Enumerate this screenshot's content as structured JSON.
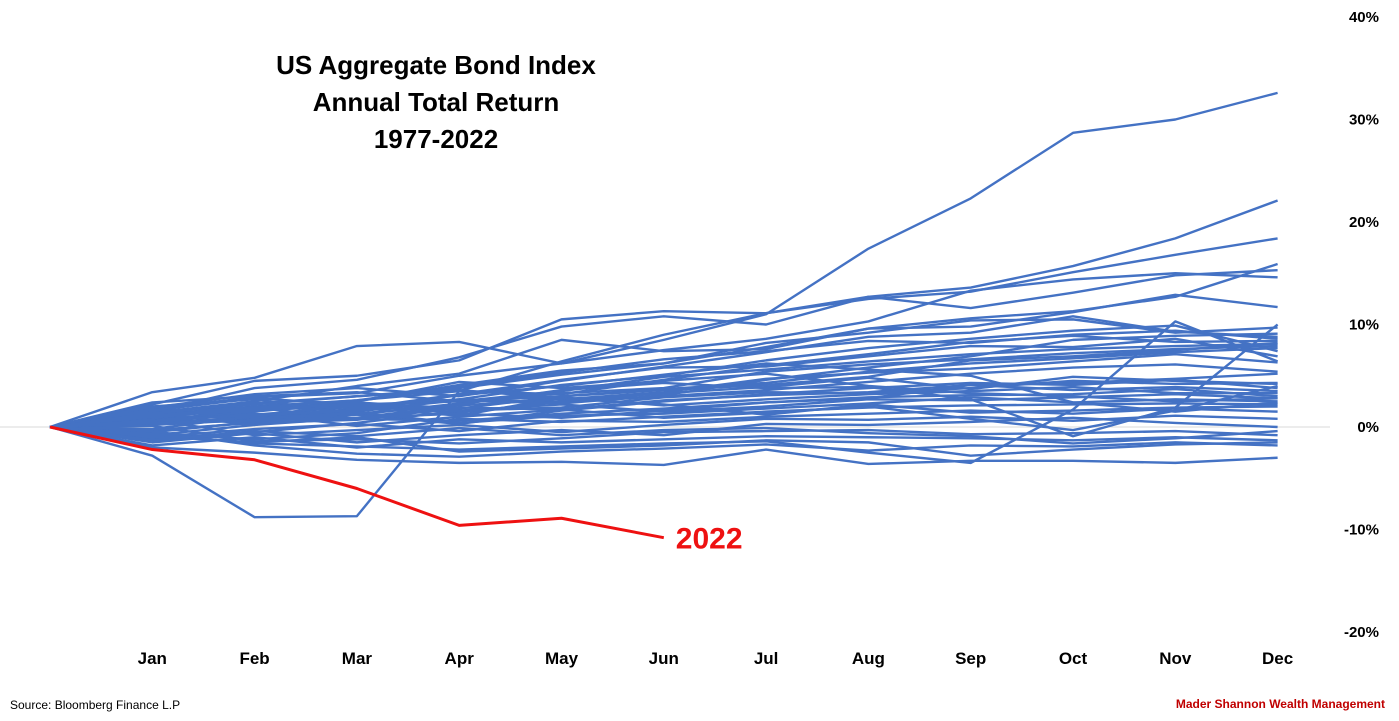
{
  "chart_data": {
    "type": "line",
    "title": [
      "US Aggregate Bond Index",
      "Annual Total Return",
      "1977-2022"
    ],
    "categories": [
      "",
      "Jan",
      "Feb",
      "Mar",
      "Apr",
      "May",
      "Jun",
      "Jul",
      "Aug",
      "Sep",
      "Oct",
      "Nov",
      "Dec"
    ],
    "ylim": [
      -20,
      40
    ],
    "yticks": [
      40,
      30,
      20,
      10,
      0,
      -10,
      -20
    ],
    "ytick_labels": [
      "40%",
      "30%",
      "20%",
      "10%",
      "0%",
      "-10%",
      "-20%"
    ],
    "grid": false,
    "colors": {
      "history": "#4472c4",
      "highlight": "#ee1111",
      "zero_line": "#d9d9d9"
    },
    "highlight": {
      "name": "2022",
      "values": [
        0,
        -2.2,
        -3.2,
        -6,
        -9.6,
        -8.9,
        -10.8
      ]
    },
    "series": [
      {
        "values": [
          0,
          3.4,
          4.8,
          7.9,
          8.3,
          6.2,
          8.5,
          11,
          17.4,
          22.3,
          28.7,
          30,
          32.6
        ]
      },
      {
        "values": [
          0,
          -2.8,
          -8.8,
          -8.7,
          3.5,
          6.4,
          9,
          11.1,
          12.7,
          13.6,
          15.7,
          18.4,
          22.1
        ]
      },
      {
        "values": [
          0,
          2.2,
          4.5,
          5,
          6.5,
          10.5,
          11.3,
          11.1,
          12.5,
          13.2,
          15.1,
          16.8,
          18.4
        ]
      },
      {
        "values": [
          0,
          1.5,
          3.8,
          4.6,
          6.8,
          9.8,
          10.8,
          10,
          12.7,
          11.6,
          13.1,
          14.8,
          15.3
        ]
      },
      {
        "values": [
          0,
          1.8,
          2.9,
          3.3,
          5,
          6.2,
          7.5,
          8.6,
          10.3,
          13.3,
          14.4,
          15,
          14.6
        ]
      },
      {
        "values": [
          0,
          1,
          2.3,
          3,
          3.8,
          5.1,
          6.2,
          7.8,
          9.6,
          10.6,
          11.3,
          12.7,
          15.9
        ]
      },
      {
        "values": [
          0,
          1.4,
          2.5,
          4,
          5.2,
          8.5,
          7.4,
          7.6,
          9.6,
          9.8,
          11.2,
          12.9,
          11.7
        ]
      },
      {
        "values": [
          0,
          0.5,
          1.5,
          2.5,
          4.1,
          5.5,
          6.2,
          8.2,
          9.2,
          10.4,
          10.5,
          9.2,
          9.7
        ]
      },
      {
        "values": [
          0,
          1.9,
          3.2,
          3.8,
          3,
          4.5,
          5.9,
          7.3,
          8.8,
          9.2,
          10.8,
          9.3,
          8.8
        ]
      },
      {
        "values": [
          0,
          0.8,
          1.2,
          2,
          2.7,
          4.1,
          5,
          6.5,
          7.7,
          8.6,
          9.4,
          9.9,
          7.4
        ]
      },
      {
        "values": [
          0,
          1.2,
          2,
          2.6,
          3.5,
          3.2,
          4.6,
          6,
          7.1,
          8.3,
          8.9,
          8.3,
          8.4
        ]
      },
      {
        "values": [
          0,
          0.4,
          0.9,
          1.8,
          3.2,
          4.6,
          5.8,
          5.9,
          6.9,
          7.9,
          7.8,
          8.6,
          6.9
        ]
      },
      {
        "values": [
          0,
          1.6,
          2.8,
          2.2,
          2.5,
          3.5,
          4.9,
          5.6,
          6.4,
          7.1,
          7.6,
          7.9,
          8.1
        ]
      },
      {
        "values": [
          0,
          -0.5,
          0.5,
          1.2,
          2.3,
          3.3,
          3.8,
          5.4,
          6.1,
          6.6,
          7.2,
          7.6,
          7.9
        ]
      },
      {
        "values": [
          0,
          0.6,
          1.7,
          2.4,
          1.8,
          3,
          3.7,
          4.3,
          5.4,
          6.2,
          6.7,
          7.3,
          7.7
        ]
      },
      {
        "values": [
          0,
          -0.8,
          0.2,
          0.9,
          2.1,
          2.7,
          3.4,
          4.7,
          5.3,
          5.7,
          6.4,
          7.1,
          6.3
        ]
      },
      {
        "values": [
          0,
          1.1,
          0.8,
          1.5,
          2.7,
          2.4,
          3,
          3.6,
          4.4,
          5.2,
          5.8,
          6.1,
          5.4
        ]
      },
      {
        "values": [
          0,
          0.3,
          1.6,
          2.1,
          1.4,
          2.5,
          3.3,
          3.9,
          4.8,
          3.7,
          4.9,
          4.5,
          4.2
        ]
      },
      {
        "values": [
          0,
          2,
          2.7,
          1.2,
          0.3,
          1.6,
          2.5,
          3.2,
          3.8,
          4.3,
          4.1,
          4.6,
          3.8
        ]
      },
      {
        "values": [
          0,
          -0.3,
          0.4,
          0.7,
          1.9,
          1.7,
          2.6,
          3.1,
          3.4,
          4.1,
          3.6,
          3.9,
          3.5
        ]
      },
      {
        "values": [
          0,
          1.3,
          0.2,
          1.9,
          1.1,
          2.9,
          2.1,
          2.7,
          3.2,
          3.5,
          3.9,
          3.3,
          3.3
        ]
      },
      {
        "values": [
          0,
          0.9,
          1.9,
          0.8,
          0.6,
          1.3,
          1.8,
          2.4,
          2.9,
          3.1,
          3.2,
          3.7,
          3
        ]
      },
      {
        "values": [
          0,
          -1.2,
          -0.5,
          0.4,
          1.6,
          2.2,
          1.5,
          2,
          2.7,
          2.6,
          2.9,
          3.2,
          2.8
        ]
      },
      {
        "values": [
          0,
          0.2,
          0.7,
          1.4,
          0.4,
          1.1,
          1.3,
          1.8,
          2.3,
          2.9,
          2.4,
          2.7,
          2.5
        ]
      },
      {
        "values": [
          0,
          -0.6,
          -1.2,
          -0.6,
          0.8,
          0.5,
          1,
          1.5,
          1.9,
          2.1,
          2.2,
          2.3,
          2.2
        ]
      },
      {
        "values": [
          0,
          1.5,
          2.2,
          3,
          3.6,
          2.8,
          2.2,
          1.2,
          2.2,
          1.4,
          1.6,
          1.9,
          2
        ]
      },
      {
        "values": [
          0,
          -1,
          -0.2,
          0.3,
          -0.4,
          0.6,
          0.5,
          1,
          1.3,
          1.6,
          1.3,
          1.8,
          1.5
        ]
      },
      {
        "values": [
          0,
          0.7,
          -0.8,
          -0.3,
          0.2,
          -0.5,
          0.2,
          0.8,
          0.7,
          1,
          0.6,
          1.1,
          0.8
        ]
      },
      {
        "values": [
          0,
          -1.5,
          -0.6,
          -1.5,
          -0.8,
          -0.3,
          -0.8,
          0.3,
          0.2,
          0.5,
          0.9,
          0.4,
          0
        ]
      },
      {
        "values": [
          0,
          0.1,
          -1.4,
          -1.2,
          -1.6,
          -1.1,
          -0.5,
          -0.4,
          -0.3,
          -0.7,
          -0.6,
          -0.4,
          -0.8
        ]
      },
      {
        "values": [
          0,
          -1.8,
          -1,
          -2,
          -1.2,
          -1.5,
          -1.2,
          -0.9,
          -1,
          -1.1,
          -1.3,
          -1,
          -1.3
        ]
      },
      {
        "values": [
          0,
          -0.4,
          -1.8,
          -2.6,
          -2.9,
          -2.4,
          -2.1,
          -1.7,
          -2.3,
          -1.8,
          -1.9,
          -1.5,
          -1.8
        ]
      },
      {
        "values": [
          0,
          -2,
          -2.5,
          -3.2,
          -3.5,
          -3.4,
          -3.7,
          -2.2,
          -3.6,
          -3.3,
          -3.3,
          -3.5,
          -3
        ]
      },
      {
        "values": [
          0,
          -0.9,
          -1.5,
          -1,
          -2.4,
          -2.1,
          -1.8,
          -1.3,
          -1.5,
          -2.8,
          -2.2,
          -1.7,
          -1.5
        ]
      },
      {
        "values": [
          0,
          2.4,
          3,
          3.4,
          2.5,
          3,
          3.6,
          4.1,
          4.9,
          6.5,
          6.9,
          7.5,
          8.2
        ]
      },
      {
        "values": [
          0,
          1.7,
          0.9,
          2.5,
          4.4,
          3.8,
          4.5,
          5.2,
          4,
          3.3,
          3,
          2.5,
          2.8
        ]
      },
      {
        "values": [
          0,
          0.5,
          1.3,
          0.1,
          1,
          1.7,
          0.9,
          1.4,
          2,
          0.8,
          -0.3,
          1.6,
          4
        ]
      },
      {
        "values": [
          0,
          -0.2,
          1.1,
          1.7,
          3.1,
          4,
          5.1,
          6.2,
          5.6,
          5,
          2.4,
          1.5,
          2.4
        ]
      },
      {
        "values": [
          0,
          1.3,
          2.4,
          1.3,
          2.2,
          3.6,
          4.3,
          3.8,
          3.9,
          2.7,
          -0.9,
          1.9,
          10
        ]
      },
      {
        "values": [
          0,
          -0.7,
          -1.6,
          -1.9,
          -2.2,
          -1.9,
          -1.6,
          -1.4,
          -2.5,
          -3.5,
          1.7,
          10.3,
          6.4
        ]
      },
      {
        "values": [
          0,
          0.4,
          0.6,
          0.9,
          1.3,
          0.9,
          1.6,
          2.4,
          2.8,
          4.1,
          4.3,
          4.7,
          5.2
        ]
      },
      {
        "values": [
          0,
          1,
          1.7,
          2.3,
          1.6,
          1.9,
          2.9,
          3.4,
          3.3,
          3.8,
          4.5,
          4.2,
          4.3
        ]
      },
      {
        "values": [
          0,
          -1.3,
          -0.4,
          -0.9,
          -0.1,
          -0.8,
          -0.3,
          -0.1,
          -0.6,
          -0.9,
          -1.6,
          -1.1,
          -0.4
        ]
      },
      {
        "values": [
          0,
          0.6,
          1.2,
          1.6,
          2.6,
          2.3,
          3.1,
          4.6,
          5.8,
          6.9,
          8.5,
          8.9,
          9.1
        ]
      },
      {
        "values": [
          0,
          1.1,
          1.9,
          2.6,
          3.9,
          5.3,
          6.6,
          7.4,
          8.4,
          8.2,
          9,
          9.4,
          8.6
        ]
      }
    ]
  },
  "footer": {
    "source": "Source: Bloomberg Finance L.P",
    "brand": "Mader Shannon Wealth Management"
  }
}
